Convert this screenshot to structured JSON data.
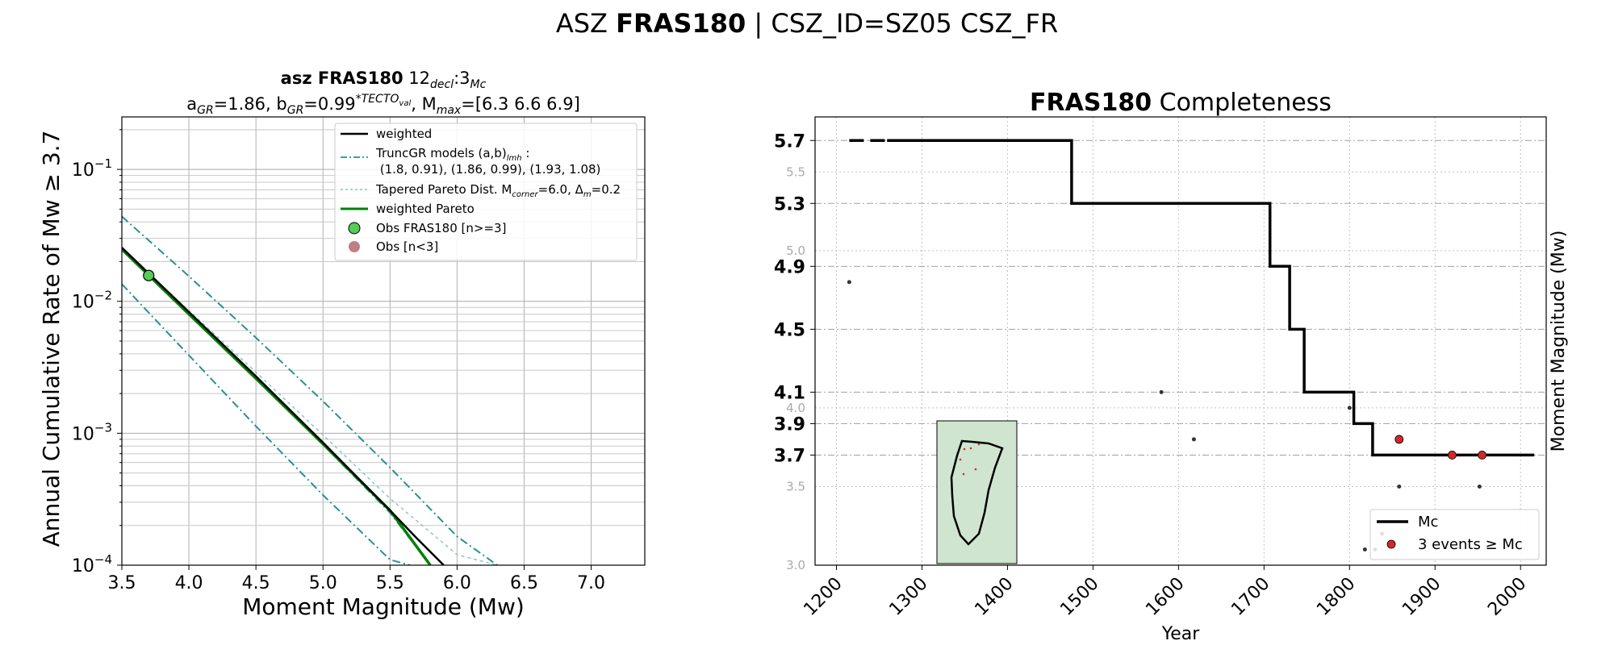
{
  "suptitle": {
    "prefix": "ASZ ",
    "bold": "FRAS180",
    "suffix": " | CSZ_ID=SZ05 CSZ_FR"
  },
  "chart_data": [
    {
      "type": "line",
      "yscale": "log",
      "title_line1": {
        "bold": "asz FRAS180",
        "rest": "12",
        "sub1": "decl",
        "mid": ":3",
        "sub2": "Mc"
      },
      "title_line2": "a_GR=1.86,  b_GR=0.99^TECTO_val, M_max=[6.3 6.6 6.9]",
      "xlabel": "Moment Magnitude (Mw)",
      "ylabel": "Annual Cumulative Rate of Mw ≥ 3.7",
      "xlim": [
        3.5,
        7.4
      ],
      "ylim": [
        0.0001,
        0.25
      ],
      "xticks": [
        "3.5",
        "4.0",
        "4.5",
        "5.0",
        "5.5",
        "6.0",
        "6.5",
        "7.0"
      ],
      "yticks": [
        {
          "base": "10",
          "exp": "−4"
        },
        {
          "base": "10",
          "exp": "−3"
        },
        {
          "base": "10",
          "exp": "−2"
        },
        {
          "base": "10",
          "exp": "−1"
        }
      ],
      "grid": true,
      "legend_position": "upper right",
      "legend": {
        "weighted": "weighted",
        "truncgr": "TruncGR models (a,b)",
        "truncgr_sub": "lmh",
        "truncgr_colon": " :",
        "truncgr_line2": " (1.8, 0.91), (1.86, 0.99), (1.93, 1.08)",
        "tapered": "Tapered Pareto Dist. M",
        "tapered_sub": "corner",
        "tapered_mid": "=6.0, Δ",
        "tapered_sub2": "m",
        "tapered_end": "=0.2",
        "weighted_pareto": "weighted Pareto",
        "obs": "Obs FRAS180 [n>=3]",
        "obs_small": "Obs [n<3]"
      },
      "series": [
        {
          "name": "weighted",
          "color": "#000000",
          "x": [
            3.5,
            4.0,
            4.5,
            5.0,
            5.5,
            5.7,
            5.9
          ],
          "y": [
            0.0255,
            0.0083,
            0.0027,
            0.00085,
            0.00026,
            0.00016,
            0.0001
          ]
        },
        {
          "name": "TruncGR (1.8, 0.91)",
          "color": "#2a9090",
          "x": [
            3.5,
            4.0,
            4.5,
            5.0,
            5.5,
            5.65
          ],
          "y": [
            0.0135,
            0.0039,
            0.00113,
            0.00034,
            0.00011,
            0.0001
          ]
        },
        {
          "name": "TruncGR (1.86, 0.99)",
          "color": "#2a9090",
          "x": [
            3.5,
            4.0,
            4.5,
            5.0,
            5.5,
            5.8
          ],
          "y": [
            0.0245,
            0.0079,
            0.0026,
            0.00082,
            0.00025,
            0.0001
          ]
        },
        {
          "name": "TruncGR (1.93, 1.08)",
          "color": "#2a9090",
          "x": [
            3.5,
            4.0,
            4.5,
            5.0,
            5.5,
            6.0,
            6.3
          ],
          "y": [
            0.044,
            0.0155,
            0.0053,
            0.00175,
            0.00055,
            0.000165,
            0.0001
          ]
        },
        {
          "name": "Tapered Pareto",
          "color": "#88c9c0",
          "x": [
            3.5,
            4.0,
            4.5,
            5.0,
            5.5,
            6.0,
            6.3
          ],
          "y": [
            0.025,
            0.0085,
            0.0029,
            0.00097,
            0.00032,
            0.00012,
            0.0001
          ]
        },
        {
          "name": "weighted Pareto",
          "color": "#008000",
          "x": [
            3.5,
            4.0,
            4.5,
            5.0,
            5.5,
            5.8
          ],
          "y": [
            0.0248,
            0.008,
            0.0026,
            0.00083,
            0.00026,
            0.0001
          ]
        }
      ],
      "observations": [
        {
          "mag": 3.7,
          "rate": 0.0157,
          "color": "#55cc55"
        }
      ],
      "colors": {
        "line": "#000000",
        "truncgr": "#2a9090",
        "tapered": "#88c9c0",
        "pareto": "#008000",
        "obs": "#55cc55",
        "obs_small": "#c08080"
      }
    },
    {
      "type": "step",
      "title": {
        "bold": "FRAS180",
        "rest": " Completeness"
      },
      "xlabel": "Year",
      "ylabel": "Moment Magnitude (Mw)",
      "xlim": [
        1175,
        2030
      ],
      "ylim": [
        3.0,
        5.85
      ],
      "xticks": [
        "1200",
        "1300",
        "1400",
        "1500",
        "1600",
        "1700",
        "1800",
        "1900",
        "2000"
      ],
      "yticks_major": [
        "3.7",
        "3.9",
        "4.1",
        "4.5",
        "4.9",
        "5.3",
        "5.7"
      ],
      "yticks_minor": [
        "3.0",
        "3.5",
        "4.0",
        "5.0",
        "5.5"
      ],
      "mc_steps": [
        {
          "from": 1215,
          "to": 1475,
          "mc": 5.7
        },
        {
          "from": 1475,
          "to": 1707,
          "mc": 5.3
        },
        {
          "from": 1707,
          "to": 1730,
          "mc": 4.9
        },
        {
          "from": 1730,
          "to": 1747,
          "mc": 4.5
        },
        {
          "from": 1747,
          "to": 1805,
          "mc": 4.1
        },
        {
          "from": 1805,
          "to": 1827,
          "mc": 3.9
        },
        {
          "from": 1827,
          "to": 2016,
          "mc": 3.7
        }
      ],
      "events_small": [
        {
          "year": 1215,
          "mag": 4.8
        },
        {
          "year": 1580,
          "mag": 4.1
        },
        {
          "year": 1618,
          "mag": 3.8
        },
        {
          "year": 1800,
          "mag": 4.0
        },
        {
          "year": 1858,
          "mag": 3.5
        },
        {
          "year": 1952,
          "mag": 3.5
        },
        {
          "year": 1818,
          "mag": 3.1
        },
        {
          "year": 1830,
          "mag": 3.1
        },
        {
          "year": 1838,
          "mag": 3.2
        }
      ],
      "events_large": [
        {
          "year": 1858,
          "mag": 3.8
        },
        {
          "year": 1920,
          "mag": 3.7
        },
        {
          "year": 1955,
          "mag": 3.7
        }
      ],
      "legend_position": "lower right",
      "legend": {
        "mc": "Mc",
        "events": "3 events ≥ Mc"
      },
      "colors": {
        "step": "#000000",
        "event": "#d62728",
        "small_event": "#333333",
        "inset_fill": "#cfe5cf"
      }
    }
  ]
}
